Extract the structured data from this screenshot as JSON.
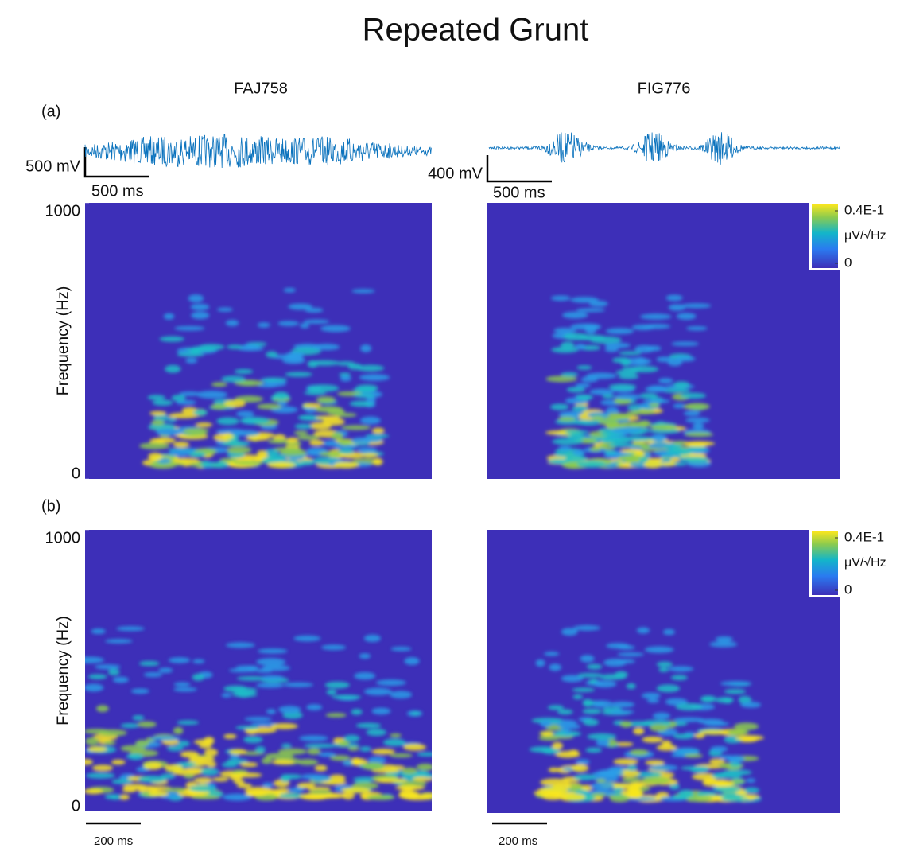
{
  "title": "Repeated Grunt",
  "columns": [
    "FAJ758",
    "FIG776"
  ],
  "panel_labels": [
    "(a)",
    "(b)"
  ],
  "waveforms": [
    {
      "amplitude_bar": "500 mV",
      "time_bar": "500 ms"
    },
    {
      "amplitude_bar": "400 mV",
      "time_bar": "500 ms"
    }
  ],
  "time_bars": [
    "200 ms",
    "200 ms"
  ],
  "chart_data": [
    {
      "type": "spectrogram",
      "ylabel": "Frequency (Hz)",
      "ylim": [
        0,
        1000
      ],
      "yticks": [
        0,
        1000
      ]
    },
    {
      "type": "spectrogram",
      "ylim": [
        0,
        1000
      ],
      "colorbar": {
        "lim": [
          0,
          0.04
        ],
        "ticks": [
          0,
          {
            "value": 0.04,
            "label": "0.4E-1"
          }
        ],
        "label": "μV/√Hz"
      }
    },
    {
      "type": "spectrogram",
      "ylabel": "Frequency (Hz)",
      "ylim": [
        0,
        1000
      ],
      "yticks": [
        0,
        1000
      ]
    },
    {
      "type": "spectrogram",
      "ylim": [
        0,
        1000
      ],
      "colorbar": {
        "lim": [
          0,
          0.04
        ],
        "ticks": [
          0,
          {
            "value": 0.04,
            "label": "0.4E-1"
          }
        ],
        "label": "μV/√Hz"
      }
    }
  ]
}
